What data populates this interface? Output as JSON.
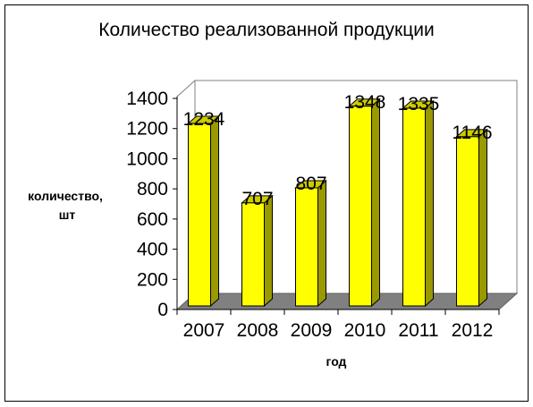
{
  "chart_data": {
    "type": "bar",
    "title": "Количество реализованной продукции",
    "xlabel": "год",
    "ylabel": "количество, шт",
    "ylabel_lines": [
      "количество,",
      "шт"
    ],
    "categories": [
      "2007",
      "2008",
      "2009",
      "2010",
      "2011",
      "2012"
    ],
    "values": [
      1234,
      707,
      807,
      1348,
      1335,
      1146
    ],
    "y_ticks": [
      "0",
      "200",
      "400",
      "600",
      "800",
      "1000",
      "1200",
      "1400"
    ],
    "ylim": [
      0,
      1400
    ],
    "grid": false,
    "legend": "none",
    "colors": {
      "bar_face": "#ffff00",
      "bar_side": "#999900",
      "bar_top": "#cccc00",
      "floor": "#808080",
      "outline": "#000000"
    }
  }
}
